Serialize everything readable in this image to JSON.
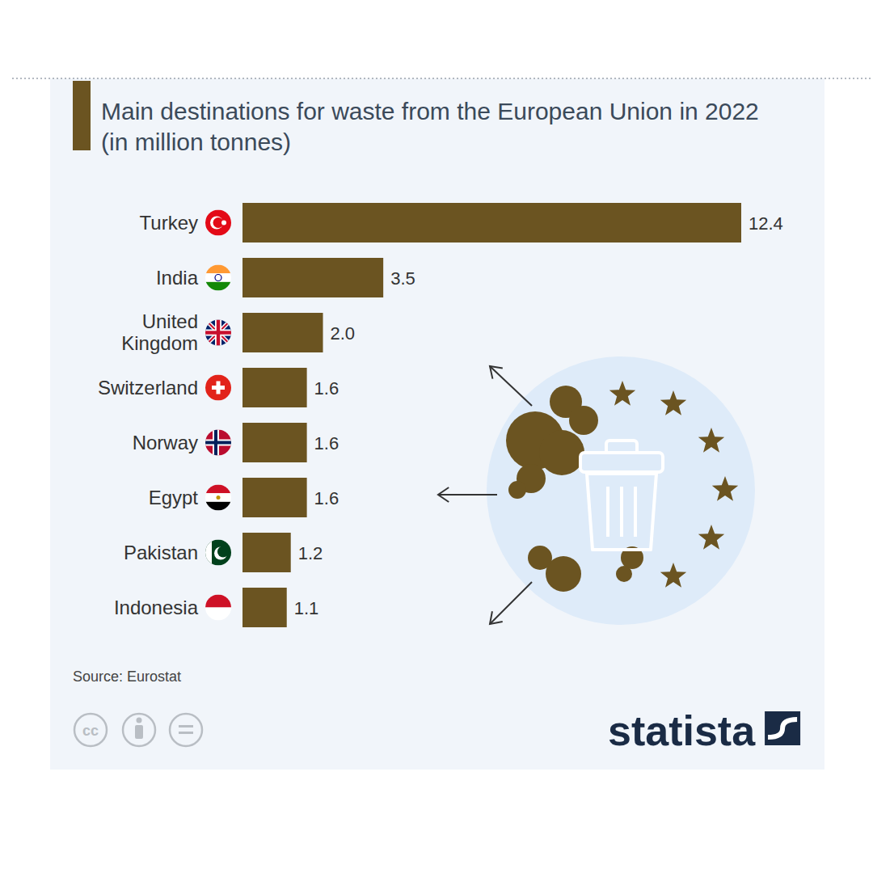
{
  "chart_data": {
    "type": "bar",
    "orientation": "horizontal",
    "title": "Main destinations for waste from the European Union in 2022 (in million tonnes)",
    "categories": [
      "Turkey",
      "India",
      "United Kingdom",
      "Switzerland",
      "Norway",
      "Egypt",
      "Pakistan",
      "Indonesia"
    ],
    "values": [
      12.4,
      3.5,
      2.0,
      1.6,
      1.6,
      1.6,
      1.2,
      1.1
    ],
    "value_labels": [
      "12.4",
      "3.5",
      "2.0",
      "1.6",
      "1.6",
      "1.6",
      "1.2",
      "1.1"
    ],
    "color": "#6b5421",
    "data_labels": true,
    "tick_labels": false,
    "source": "Source: Eurostat"
  },
  "brand": "statista",
  "license": "cc"
}
